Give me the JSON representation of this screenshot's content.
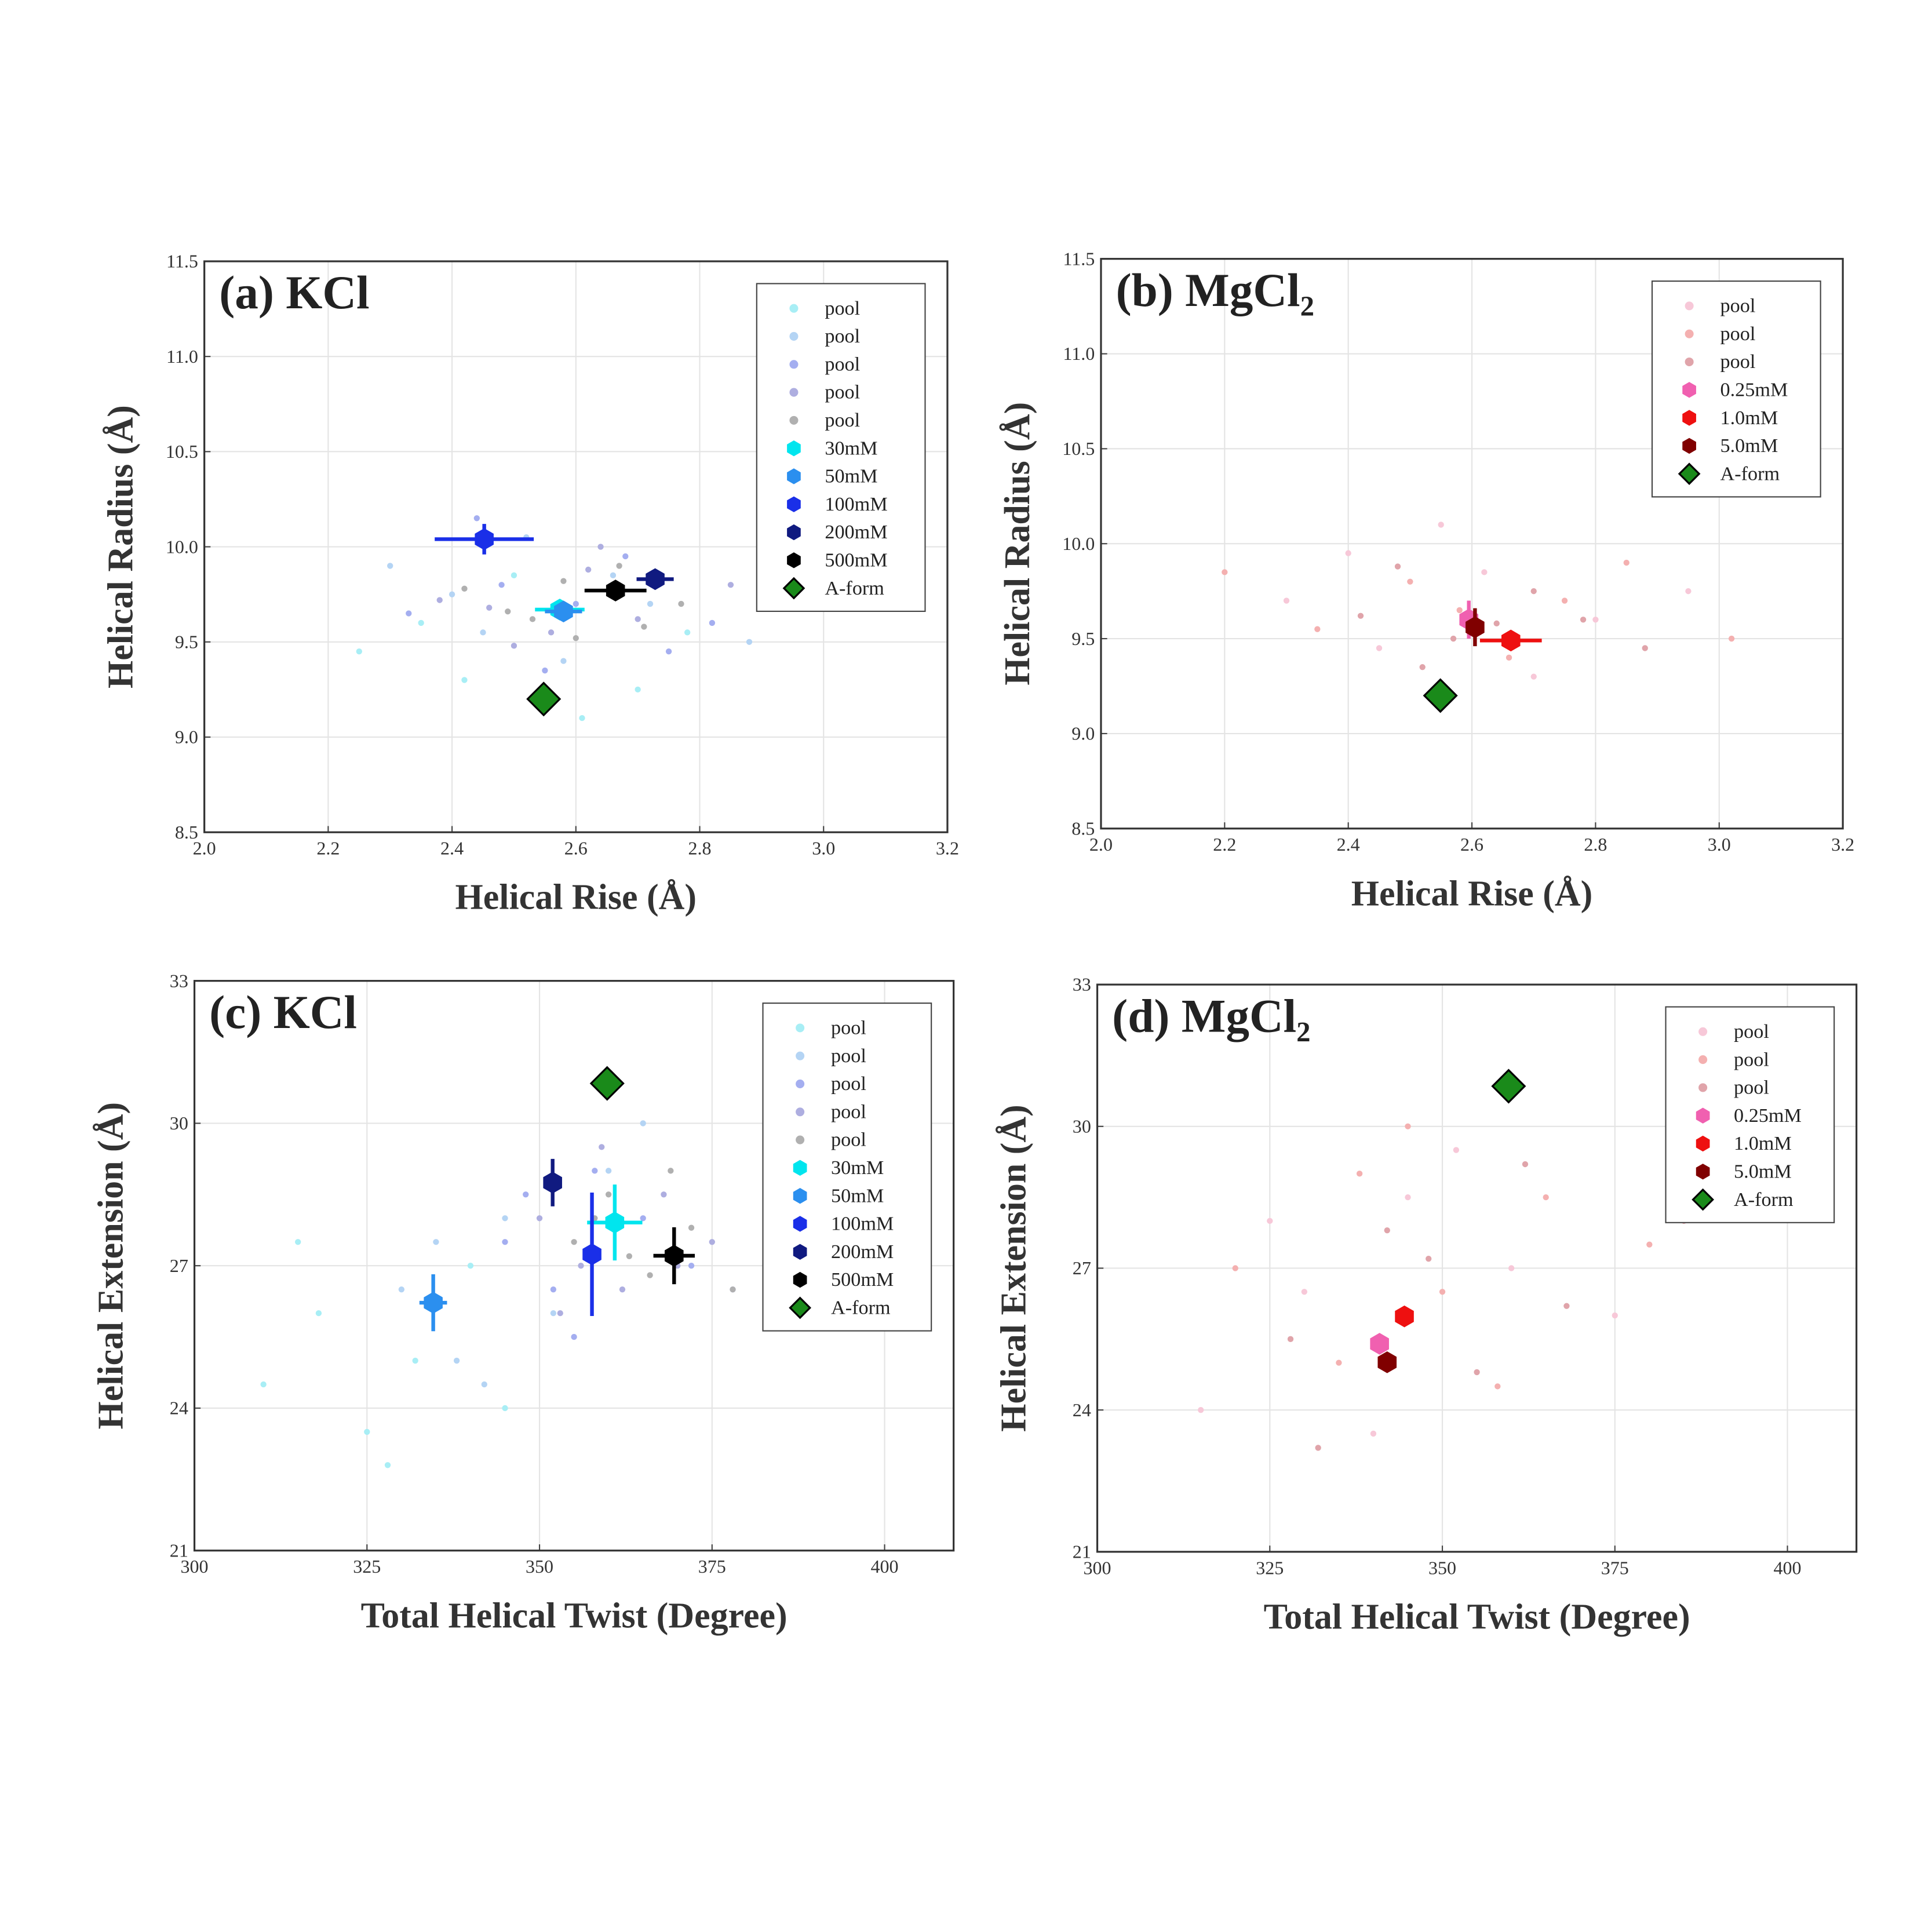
{
  "chart_data": [
    {
      "type": "scatter",
      "title": "(a) KCl",
      "xlabel": "Helical Rise (Å)",
      "ylabel": "Helical Radius (Å)",
      "xlim": [
        2.0,
        3.2
      ],
      "ylim": [
        8.5,
        11.5
      ],
      "xticks": [
        {
          "value": 2.0,
          "label": "2.0"
        },
        2.2,
        2.4,
        2.6,
        2.8,
        {
          "value": 3.0,
          "label": "3.0"
        },
        3.2
      ],
      "yticks": [
        8.5,
        {
          "value": 9.0,
          "label": "9.0"
        },
        9.5,
        {
          "value": 10.0,
          "label": "10.0"
        },
        10.5,
        {
          "value": 11.0,
          "label": "11.0"
        },
        11.5
      ],
      "grid": true,
      "legend": "upper right",
      "series": [
        {
          "name": "pool",
          "color": "#a8eef5",
          "marker": "dot",
          "x": [
            2.25,
            2.42,
            2.61,
            2.78,
            2.95,
            2.5,
            2.35,
            2.7
          ],
          "values": [
            9.45,
            9.3,
            9.1,
            9.55,
            9.75,
            9.85,
            9.6,
            9.25
          ]
        },
        {
          "name": "pool",
          "color": "#b4d4f4",
          "marker": "dot",
          "x": [
            2.3,
            2.45,
            2.58,
            2.72,
            2.88,
            2.52,
            2.4,
            2.66
          ],
          "values": [
            9.9,
            9.55,
            9.4,
            9.7,
            9.5,
            10.05,
            9.75,
            9.85
          ]
        },
        {
          "name": "pool",
          "color": "#a4aef0",
          "marker": "dot",
          "x": [
            2.33,
            2.48,
            2.55,
            2.68,
            2.82,
            2.6,
            2.44,
            2.75
          ],
          "values": [
            9.65,
            9.8,
            9.35,
            9.95,
            9.6,
            9.7,
            10.15,
            9.45
          ]
        },
        {
          "name": "pool",
          "color": "#aeaee0",
          "marker": "dot",
          "x": [
            2.38,
            2.5,
            2.62,
            2.7,
            2.85,
            2.56,
            2.46,
            2.64
          ],
          "values": [
            9.72,
            9.48,
            9.88,
            9.62,
            9.8,
            9.55,
            9.68,
            10.0
          ]
        },
        {
          "name": "pool",
          "color": "#b0b0b0",
          "marker": "dot",
          "x": [
            2.42,
            2.53,
            2.6,
            2.67,
            2.77,
            2.49,
            2.58,
            2.71
          ],
          "values": [
            9.78,
            9.62,
            9.52,
            9.9,
            9.7,
            9.66,
            9.82,
            9.58
          ]
        },
        {
          "name": "30mM",
          "color": "#00e5ee",
          "marker": "hexagon",
          "x": [
            2.574
          ],
          "values": [
            9.67
          ],
          "xerr": [
            0.04
          ],
          "yerr": [
            0.05
          ]
        },
        {
          "name": "50mM",
          "color": "#2b8fef",
          "marker": "hexagon",
          "x": [
            2.58
          ],
          "values": [
            9.66
          ],
          "xerr": [
            0.03
          ],
          "yerr": [
            0.04
          ]
        },
        {
          "name": "100mM",
          "color": "#1a2fe8",
          "marker": "hexagon",
          "x": [
            2.452
          ],
          "values": [
            10.04
          ],
          "xerr": [
            0.08
          ],
          "yerr": [
            0.08
          ]
        },
        {
          "name": "200mM",
          "color": "#101a80",
          "marker": "hexagon",
          "x": [
            2.728
          ],
          "values": [
            9.83
          ],
          "xerr": [
            0.03
          ],
          "yerr": [
            0.05
          ]
        },
        {
          "name": "500mM",
          "color": "#000000",
          "marker": "hexagon",
          "x": [
            2.664
          ],
          "values": [
            9.77
          ],
          "xerr": [
            0.05
          ],
          "yerr": [
            0.05
          ]
        },
        {
          "name": "A-form",
          "color": "#1a8a1a",
          "marker": "diamond",
          "x": [
            2.548
          ],
          "values": [
            9.2
          ]
        }
      ]
    },
    {
      "type": "scatter",
      "title": "(b) MgCl₂",
      "xlabel": "Helical Rise (Å)",
      "ylabel": "Helical Radius (Å)",
      "xlim": [
        2.0,
        3.2
      ],
      "ylim": [
        8.5,
        11.5
      ],
      "xticks": [
        {
          "value": 2.0,
          "label": "2.0"
        },
        2.2,
        2.4,
        2.6,
        2.8,
        {
          "value": 3.0,
          "label": "3.0"
        },
        3.2
      ],
      "yticks": [
        8.5,
        {
          "value": 9.0,
          "label": "9.0"
        },
        9.5,
        {
          "value": 10.0,
          "label": "10.0"
        },
        10.5,
        {
          "value": 11.0,
          "label": "11.0"
        },
        11.5
      ],
      "grid": true,
      "legend": "upper right",
      "series": [
        {
          "name": "pool",
          "color": "#f7c8d8",
          "marker": "dot",
          "x": [
            2.3,
            2.45,
            2.62,
            2.8,
            2.95,
            2.55,
            2.7,
            2.4
          ],
          "values": [
            9.7,
            9.45,
            9.85,
            9.6,
            9.75,
            10.1,
            9.3,
            9.95
          ]
        },
        {
          "name": "pool",
          "color": "#f4b0b0",
          "marker": "dot",
          "x": [
            2.35,
            2.5,
            2.66,
            2.85,
            3.02,
            2.58,
            2.75,
            2.2
          ],
          "values": [
            9.55,
            9.8,
            9.4,
            9.9,
            9.5,
            9.65,
            9.7,
            9.85
          ]
        },
        {
          "name": "pool",
          "color": "#e0a4aa",
          "marker": "dot",
          "x": [
            2.42,
            2.57,
            2.7,
            2.88,
            2.48,
            2.64,
            2.78,
            2.52
          ],
          "values": [
            9.62,
            9.5,
            9.75,
            9.45,
            9.88,
            9.58,
            9.6,
            9.35
          ]
        },
        {
          "name": "0.25mM",
          "color": "#f060b0",
          "marker": "hexagon",
          "x": [
            2.595
          ],
          "values": [
            9.6
          ],
          "xerr": [
            0.01
          ],
          "yerr": [
            0.1
          ]
        },
        {
          "name": "1.0mM",
          "color": "#ee1010",
          "marker": "hexagon",
          "x": [
            2.663
          ],
          "values": [
            9.49
          ],
          "xerr": [
            0.05
          ],
          "yerr": [
            0.03
          ]
        },
        {
          "name": "5.0mM",
          "color": "#800000",
          "marker": "hexagon",
          "x": [
            2.605
          ],
          "values": [
            9.56
          ],
          "xerr": [
            0.01
          ],
          "yerr": [
            0.1
          ]
        },
        {
          "name": "A-form",
          "color": "#1a8a1a",
          "marker": "diamond",
          "x": [
            2.549
          ],
          "values": [
            9.2
          ]
        }
      ]
    },
    {
      "type": "scatter",
      "title": "(c) KCl",
      "xlabel": "Total Helical Twist (Degree)",
      "ylabel": "Helical Extension (Å)",
      "xlim": [
        300,
        410
      ],
      "ylim": [
        21,
        33
      ],
      "xticks": [
        300,
        325,
        350,
        375,
        400
      ],
      "yticks": [
        21,
        24,
        27,
        30,
        33
      ],
      "grid": true,
      "legend": "upper right",
      "series": [
        {
          "name": "pool",
          "color": "#a8eef5",
          "marker": "dot",
          "x": [
            310,
            318,
            325,
            332,
            340,
            328,
            315,
            345
          ],
          "values": [
            24.5,
            26.0,
            23.5,
            25.0,
            27.0,
            22.8,
            27.5,
            24.0
          ]
        },
        {
          "name": "pool",
          "color": "#b4d4f4",
          "marker": "dot",
          "x": [
            330,
            338,
            345,
            352,
            360,
            342,
            335,
            365
          ],
          "values": [
            26.5,
            25.0,
            28.0,
            26.0,
            29.0,
            24.5,
            27.5,
            30.0
          ]
        },
        {
          "name": "pool",
          "color": "#a4aef0",
          "marker": "dot",
          "x": [
            345,
            352,
            358,
            365,
            372,
            355,
            348,
            378
          ],
          "values": [
            27.5,
            26.5,
            29.0,
            28.0,
            27.0,
            25.5,
            28.5,
            26.5
          ]
        },
        {
          "name": "pool",
          "color": "#aeaee0",
          "marker": "dot",
          "x": [
            350,
            356,
            362,
            368,
            375,
            359,
            353,
            370
          ],
          "values": [
            28.0,
            27.0,
            26.5,
            28.5,
            27.5,
            29.5,
            26.0,
            27.0
          ]
        },
        {
          "name": "pool",
          "color": "#b0b0b0",
          "marker": "dot",
          "x": [
            355,
            360,
            366,
            372,
            378,
            363,
            358,
            369
          ],
          "values": [
            27.5,
            28.5,
            26.8,
            27.8,
            26.5,
            27.2,
            28.0,
            29.0
          ]
        },
        {
          "name": "30mM",
          "color": "#00e5ee",
          "marker": "hexagon",
          "x": [
            360.9
          ],
          "values": [
            27.91
          ],
          "xerr": [
            4
          ],
          "yerr": [
            0.8
          ]
        },
        {
          "name": "50mM",
          "color": "#2b8fef",
          "marker": "hexagon",
          "x": [
            334.6
          ],
          "values": [
            26.22
          ],
          "xerr": [
            2
          ],
          "yerr": [
            0.6
          ]
        },
        {
          "name": "100mM",
          "color": "#1a2fe8",
          "marker": "hexagon",
          "x": [
            357.6
          ],
          "values": [
            27.24
          ],
          "xerr": [
            1
          ],
          "yerr": [
            1.3
          ]
        },
        {
          "name": "200mM",
          "color": "#101a80",
          "marker": "hexagon",
          "x": [
            351.9
          ],
          "values": [
            28.75
          ],
          "xerr": [
            1
          ],
          "yerr": [
            0.5
          ]
        },
        {
          "name": "500mM",
          "color": "#000000",
          "marker": "hexagon",
          "x": [
            369.5
          ],
          "values": [
            27.21
          ],
          "xerr": [
            3
          ],
          "yerr": [
            0.6
          ]
        },
        {
          "name": "A-form",
          "color": "#1a8a1a",
          "marker": "diamond",
          "x": [
            359.8
          ],
          "values": [
            30.84
          ]
        }
      ]
    },
    {
      "type": "scatter",
      "title": "(d) MgCl₂",
      "xlabel": "Total Helical Twist (Degree)",
      "ylabel": "Helical Extension (Å)",
      "xlim": [
        300,
        410
      ],
      "ylim": [
        21,
        33
      ],
      "xticks": [
        300,
        325,
        350,
        375,
        400
      ],
      "yticks": [
        21,
        24,
        27,
        30,
        33
      ],
      "grid": true,
      "legend": "upper right",
      "series": [
        {
          "name": "pool",
          "color": "#f7c8d8",
          "marker": "dot",
          "x": [
            315,
            330,
            345,
            360,
            375,
            340,
            352,
            325
          ],
          "values": [
            24.0,
            26.5,
            28.5,
            27.0,
            26.0,
            23.5,
            29.5,
            28.0
          ]
        },
        {
          "name": "pool",
          "color": "#f4b0b0",
          "marker": "dot",
          "x": [
            320,
            335,
            350,
            365,
            380,
            345,
            358,
            338
          ],
          "values": [
            27.0,
            25.0,
            26.5,
            28.5,
            27.5,
            30.0,
            24.5,
            29.0
          ]
        },
        {
          "name": "pool",
          "color": "#e0a4aa",
          "marker": "dot",
          "x": [
            328,
            342,
            355,
            368,
            385,
            348,
            362,
            332
          ],
          "values": [
            25.5,
            27.8,
            24.8,
            26.2,
            28.0,
            27.2,
            29.2,
            23.2
          ]
        },
        {
          "name": "0.25mM",
          "color": "#f060b0",
          "marker": "hexagon",
          "x": [
            340.9
          ],
          "values": [
            25.4
          ]
        },
        {
          "name": "1.0mM",
          "color": "#ee1010",
          "marker": "hexagon",
          "x": [
            344.5
          ],
          "values": [
            25.98
          ]
        },
        {
          "name": "5.0mM",
          "color": "#800000",
          "marker": "hexagon",
          "x": [
            342.0
          ],
          "values": [
            25.01
          ]
        },
        {
          "name": "A-form",
          "color": "#1a8a1a",
          "marker": "diamond",
          "x": [
            359.6
          ],
          "values": [
            30.85
          ]
        }
      ]
    }
  ]
}
